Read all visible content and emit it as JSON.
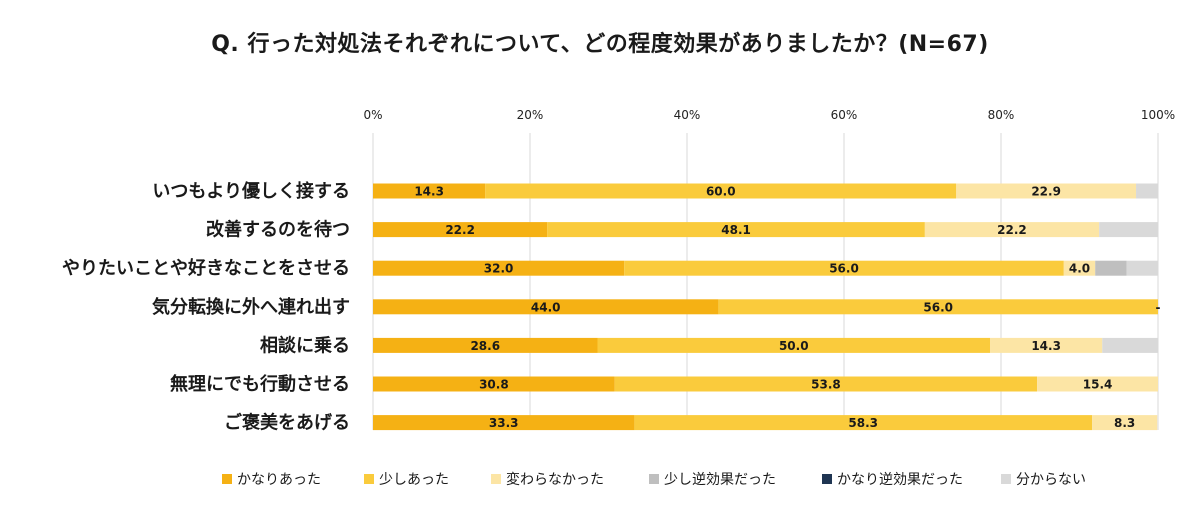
{
  "chart_data": {
    "type": "bar",
    "orientation": "horizontal",
    "stacked": true,
    "title": "Q. 行った対処法それぞれについて、どの程度効果がありましたか？(N=67)",
    "xlim": [
      0,
      100
    ],
    "x_ticks": [
      "0%",
      "20%",
      "40%",
      "60%",
      "80%",
      "100%"
    ],
    "grid": "vertical",
    "legend_position": "bottom",
    "categories": [
      "いつもより優しく接する",
      "改善するのを待つ",
      "やりたいことや好きなことをさせる",
      "気分転換に外へ連れ出す",
      "相談に乗る",
      "無理にでも行動させる",
      "ご褒美をあげる"
    ],
    "series": [
      {
        "name": "かなりあった",
        "color": "#F5B114",
        "values": [
          14.3,
          22.2,
          32.0,
          44.0,
          28.6,
          30.8,
          33.3
        ],
        "labels": [
          "14.3",
          "22.2",
          "32.0",
          "44.0",
          "28.6",
          "30.8",
          "33.3"
        ]
      },
      {
        "name": "少しあった",
        "color": "#FACB3C",
        "values": [
          60.0,
          48.1,
          56.0,
          56.0,
          50.0,
          53.8,
          58.3
        ],
        "labels": [
          "60.0",
          "48.1",
          "56.0",
          "56.0",
          "50.0",
          "53.8",
          "58.3"
        ]
      },
      {
        "name": "変わらなかった",
        "color": "#FCE5A5",
        "values": [
          22.9,
          22.2,
          4.0,
          0,
          14.3,
          15.4,
          8.3
        ],
        "labels": [
          "22.9",
          "22.2",
          "4.0",
          "",
          "14.3",
          "15.4",
          "8.3"
        ]
      },
      {
        "name": "少し逆効果だった",
        "color": "#BFBFBF",
        "values": [
          0,
          0,
          4.0,
          0,
          0,
          0,
          0
        ],
        "labels": [
          "",
          "",
          "",
          "",
          "",
          "",
          ""
        ]
      },
      {
        "name": "かなり逆効果だった",
        "color": "#1F3552",
        "values": [
          0,
          0,
          0,
          0,
          0,
          0,
          0
        ],
        "labels": [
          "",
          "",
          "",
          "",
          "",
          "",
          ""
        ]
      },
      {
        "name": "分からない",
        "color": "#D9D9D9",
        "values": [
          2.8,
          7.5,
          4.0,
          0,
          7.1,
          0,
          0
        ],
        "labels": [
          "",
          "",
          "",
          "-",
          "",
          "",
          ""
        ]
      }
    ]
  }
}
